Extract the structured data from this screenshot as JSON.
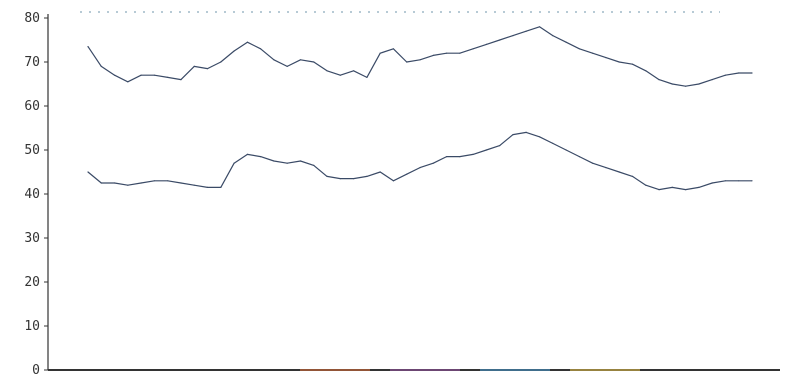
{
  "chart_data": {
    "type": "line",
    "title": "",
    "xlabel": "",
    "ylabel": "",
    "ylim": [
      0,
      80
    ],
    "yticks": [
      0,
      10,
      20,
      30,
      40,
      50,
      60,
      70,
      80
    ],
    "ytick_labels": [
      "0",
      "10",
      "20",
      "30",
      "40",
      "50",
      "60",
      "70",
      "80"
    ],
    "xlim": [
      0,
      100
    ],
    "xticks": [],
    "grid": false,
    "legend": "none",
    "x": [
      0,
      2,
      4,
      6,
      8,
      10,
      12,
      14,
      16,
      18,
      20,
      22,
      24,
      26,
      28,
      30,
      32,
      34,
      36,
      38,
      40,
      42,
      44,
      46,
      48,
      50,
      52,
      54,
      56,
      58,
      60,
      62,
      64,
      66,
      68,
      70,
      72,
      74,
      76,
      78,
      80,
      82,
      84,
      86,
      88,
      90,
      92,
      94,
      96,
      98,
      100
    ],
    "series": [
      {
        "color": "#3a4a66",
        "values": [
          73.5,
          69,
          67,
          65.5,
          67,
          67,
          66.5,
          66,
          69,
          68.5,
          70,
          72.5,
          74.5,
          73,
          70.5,
          69,
          70.5,
          70,
          68,
          67,
          68,
          66.5,
          72,
          73,
          70,
          70.5,
          71.5,
          72,
          72,
          73,
          74,
          75,
          76,
          77,
          78,
          76,
          74.5,
          73,
          72,
          71,
          70,
          69.5,
          68,
          66,
          65,
          64.5,
          65,
          66,
          67,
          67.5,
          67.5
        ]
      },
      {
        "color": "#3a4a66",
        "values": [
          45,
          42.5,
          42.5,
          42,
          42.5,
          43,
          43,
          42.5,
          42,
          41.5,
          41.5,
          47,
          49,
          48.5,
          47.5,
          47,
          47.5,
          46.5,
          44,
          43.5,
          43.5,
          44,
          45,
          43,
          44.5,
          46,
          47,
          48.5,
          48.5,
          49,
          50,
          51,
          53.5,
          54,
          53,
          51.5,
          50,
          48.5,
          47,
          46,
          45,
          44,
          42,
          41,
          41.5,
          41,
          41.5,
          42.5,
          43,
          43,
          43
        ]
      }
    ]
  },
  "colors": {
    "axis": "#333333",
    "top_border": "#9fb8c7",
    "accent_segments": [
      "#e0723c",
      "#9b57a8",
      "#4b9fd5",
      "#e9c64b"
    ]
  }
}
